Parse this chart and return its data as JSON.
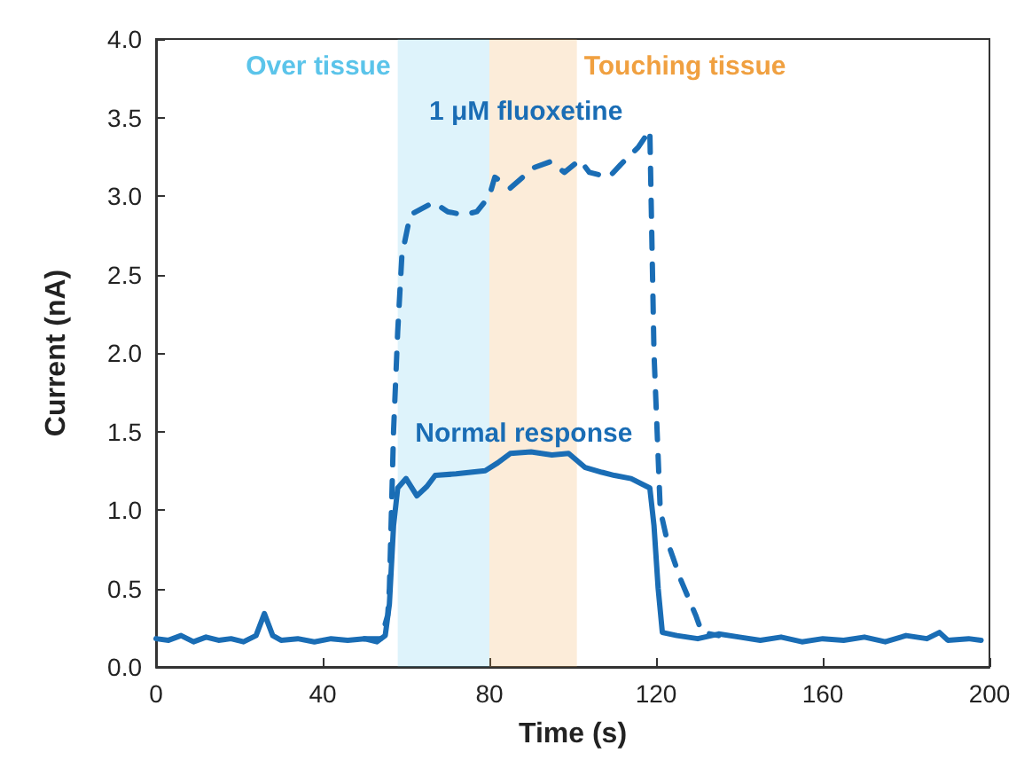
{
  "chart_data": {
    "type": "line",
    "xlabel": "Time (s)",
    "ylabel": "Current (nA)",
    "xlim": [
      0,
      200
    ],
    "xticks": [
      0,
      40,
      80,
      120,
      160,
      200
    ],
    "ylim": [
      0,
      4
    ],
    "yticks": [
      {
        "value": 0,
        "label": "0.0"
      },
      0.5,
      {
        "value": 1,
        "label": "1.0"
      },
      1.5,
      {
        "value": 2,
        "label": "2.0"
      },
      2.5,
      {
        "value": 3,
        "label": "3.0"
      },
      3.5,
      {
        "value": 4,
        "label": "4.0"
      }
    ],
    "grid": false,
    "legend": false,
    "marker": "none",
    "bands": [
      {
        "axis": "x",
        "from": 58,
        "to": 80,
        "label": "Over tissue",
        "color": "#5bc4ea"
      },
      {
        "axis": "x",
        "from": 80,
        "to": 101,
        "label": "Touching tissue",
        "color": "#f0a040"
      }
    ],
    "series": [
      {
        "name": "Normal response",
        "color": "#1a6db5",
        "line_style": "solid",
        "x": [
          0,
          3,
          6,
          9,
          12,
          15,
          18,
          21,
          24,
          26,
          28,
          30,
          34,
          38,
          42,
          46,
          50,
          53,
          55,
          56,
          57,
          58,
          60,
          62.6,
          65,
          67,
          72,
          79,
          82,
          85,
          90,
          95,
          99,
          103,
          107,
          110,
          114,
          118.5,
          119.5,
          120.5,
          121.5,
          125,
          130,
          135,
          140,
          145,
          150,
          155,
          160,
          165,
          170,
          175,
          180,
          185,
          188,
          190,
          195,
          198
        ],
        "values": [
          0.18,
          0.17,
          0.2,
          0.16,
          0.19,
          0.17,
          0.18,
          0.16,
          0.2,
          0.34,
          0.2,
          0.17,
          0.18,
          0.16,
          0.18,
          0.17,
          0.18,
          0.16,
          0.2,
          0.4,
          0.9,
          1.14,
          1.2,
          1.09,
          1.15,
          1.22,
          1.23,
          1.25,
          1.3,
          1.36,
          1.37,
          1.35,
          1.36,
          1.27,
          1.24,
          1.22,
          1.2,
          1.14,
          0.9,
          0.5,
          0.22,
          0.2,
          0.18,
          0.21,
          0.19,
          0.17,
          0.19,
          0.16,
          0.18,
          0.17,
          0.19,
          0.16,
          0.2,
          0.18,
          0.22,
          0.17,
          0.18,
          0.17
        ]
      },
      {
        "name": "1 μM fluoxetine",
        "color": "#1a6db5",
        "line_style": "dashed",
        "x": [
          50,
          54,
          55.6,
          56,
          57,
          58,
          59,
          61,
          66.6,
          70,
          73.8,
          77,
          80,
          81.3,
          85,
          88,
          90.6,
          94.8,
          98,
          101.7,
          104,
          108.7,
          111.5,
          115.7,
          118.5,
          119.5,
          121,
          122.7,
          126,
          129.5,
          131,
          135
        ],
        "values": [
          0.18,
          0.18,
          0.33,
          0.5,
          1.5,
          2.14,
          2.62,
          2.88,
          2.96,
          2.9,
          2.88,
          2.9,
          3.0,
          3.12,
          3.05,
          3.12,
          3.18,
          3.22,
          3.15,
          3.23,
          3.15,
          3.12,
          3.2,
          3.31,
          3.42,
          2.0,
          1.0,
          0.8,
          0.55,
          0.33,
          0.22,
          0.2
        ]
      }
    ]
  }
}
